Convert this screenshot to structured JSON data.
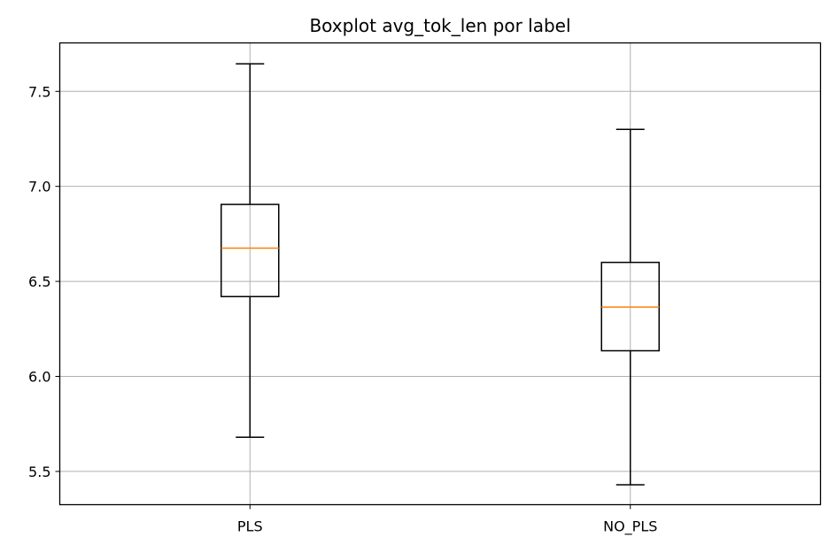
{
  "chart_data": {
    "type": "boxplot",
    "title": "Boxplot avg_tok_len por label",
    "xlabel": "",
    "ylabel": "",
    "categories": [
      "PLS",
      "NO_PLS"
    ],
    "boxes": [
      {
        "label": "PLS",
        "whisker_low": 5.68,
        "q1": 6.42,
        "median": 6.675,
        "q3": 6.905,
        "whisker_high": 7.645
      },
      {
        "label": "NO_PLS",
        "whisker_low": 5.43,
        "q1": 6.135,
        "median": 6.365,
        "q3": 6.6,
        "whisker_high": 7.3
      }
    ],
    "ylim": [
      5.325,
      7.755
    ],
    "yticks": [
      5.5,
      6.0,
      6.5,
      7.0,
      7.5
    ],
    "ytick_labels": [
      "5.5",
      "6.0",
      "6.5",
      "7.0",
      "7.5"
    ],
    "grid": true,
    "colors": {
      "median": "#ff7f0e",
      "box": "#000000",
      "grid": "#b0b0b0"
    }
  }
}
